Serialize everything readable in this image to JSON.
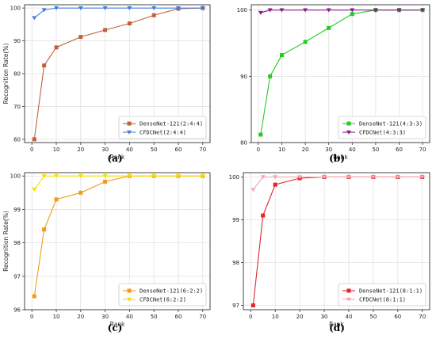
{
  "chart_data": [
    {
      "type": "line",
      "caption": "(a)",
      "xlabel": "Rank",
      "ylabel": "Recognition Rate(%)",
      "xlim": [
        -3,
        73
      ],
      "ylim": [
        59,
        101
      ],
      "xticks": [
        0,
        10,
        20,
        30,
        40,
        50,
        60,
        70
      ],
      "yticks": [
        60,
        70,
        80,
        90,
        100
      ],
      "grid": true,
      "legend_position": "bottom-right",
      "series": [
        {
          "name": "DenseNet-121(2:4:4)",
          "color": "#c0623a",
          "marker": "square",
          "x": [
            1,
            5,
            10,
            20,
            30,
            40,
            50,
            60,
            70
          ],
          "y": [
            60,
            82.5,
            88,
            91.2,
            93.3,
            95.3,
            97.8,
            99.8,
            100
          ]
        },
        {
          "name": "CFDCNet(2:4:4)",
          "color": "#3d7fd9",
          "marker": "triangle-down",
          "x": [
            1,
            5,
            10,
            20,
            30,
            40,
            50,
            60,
            70
          ],
          "y": [
            97,
            99.4,
            100,
            100,
            100,
            100,
            100,
            100,
            100
          ]
        }
      ]
    },
    {
      "type": "line",
      "caption": "(b)",
      "xlabel": "Rank",
      "ylabel": "",
      "xlim": [
        -3,
        73
      ],
      "ylim": [
        80,
        100.8
      ],
      "xticks": [
        0,
        10,
        20,
        30,
        40,
        50,
        60,
        70
      ],
      "yticks": [
        80,
        90,
        100
      ],
      "grid": true,
      "legend_position": "bottom-right",
      "series": [
        {
          "name": "DenseNet-121(4:3:3)",
          "color": "#22cc22",
          "marker": "square",
          "x": [
            1,
            5,
            10,
            20,
            30,
            40,
            50,
            60,
            70
          ],
          "y": [
            81.2,
            90,
            93.2,
            95.2,
            97.3,
            99.4,
            100,
            100,
            100
          ]
        },
        {
          "name": "CFDCNet(4:3:3)",
          "color": "#8a1a8a",
          "marker": "triangle-down",
          "x": [
            1,
            5,
            10,
            20,
            30,
            40,
            50,
            60,
            70
          ],
          "y": [
            99.6,
            100,
            100,
            100,
            100,
            100,
            100,
            100,
            100
          ]
        }
      ]
    },
    {
      "type": "line",
      "caption": "(c)",
      "xlabel": "Rank",
      "ylabel": "Recognition Rate(%)",
      "xlim": [
        -3,
        73
      ],
      "ylim": [
        96,
        100.1
      ],
      "xticks": [
        0,
        10,
        20,
        30,
        40,
        50,
        60,
        70
      ],
      "yticks": [
        96,
        97,
        98,
        99,
        100
      ],
      "grid": true,
      "legend_position": "bottom-right",
      "series": [
        {
          "name": "DenseNet-121(6:2:2)",
          "color": "#f59a18",
          "marker": "square",
          "x": [
            1,
            5,
            10,
            20,
            30,
            40,
            50,
            60,
            70
          ],
          "y": [
            96.4,
            98.4,
            99.3,
            99.5,
            99.83,
            100,
            100,
            100,
            100
          ]
        },
        {
          "name": "CFDCNet(6:2:2)",
          "color": "#f2e000",
          "marker": "triangle-down",
          "x": [
            1,
            5,
            10,
            20,
            30,
            40,
            50,
            60,
            70
          ],
          "y": [
            99.6,
            100,
            100,
            100,
            100,
            100,
            100,
            100,
            100
          ]
        }
      ]
    },
    {
      "type": "line",
      "caption": "(d)",
      "xlabel": "Rank",
      "ylabel": "",
      "xlim": [
        -3,
        73
      ],
      "ylim": [
        96.9,
        100.1
      ],
      "xticks": [
        0,
        10,
        20,
        30,
        40,
        50,
        60,
        70
      ],
      "yticks": [
        97,
        98,
        99,
        100
      ],
      "grid": true,
      "legend_position": "bottom-right",
      "series": [
        {
          "name": "DenseNet-121(8:1:1)",
          "color": "#e3262a",
          "marker": "square",
          "x": [
            1,
            5,
            10,
            20,
            30,
            40,
            50,
            60,
            70
          ],
          "y": [
            97,
            99.1,
            99.82,
            99.97,
            100,
            100,
            100,
            100,
            100
          ]
        },
        {
          "name": "CFDCNet(8:1:1)",
          "color": "#f4a6b4",
          "marker": "triangle-down",
          "x": [
            1,
            5,
            10,
            20,
            30,
            40,
            50,
            60,
            70
          ],
          "y": [
            99.7,
            100,
            100,
            100,
            100,
            100,
            100,
            100,
            100
          ]
        }
      ]
    }
  ]
}
